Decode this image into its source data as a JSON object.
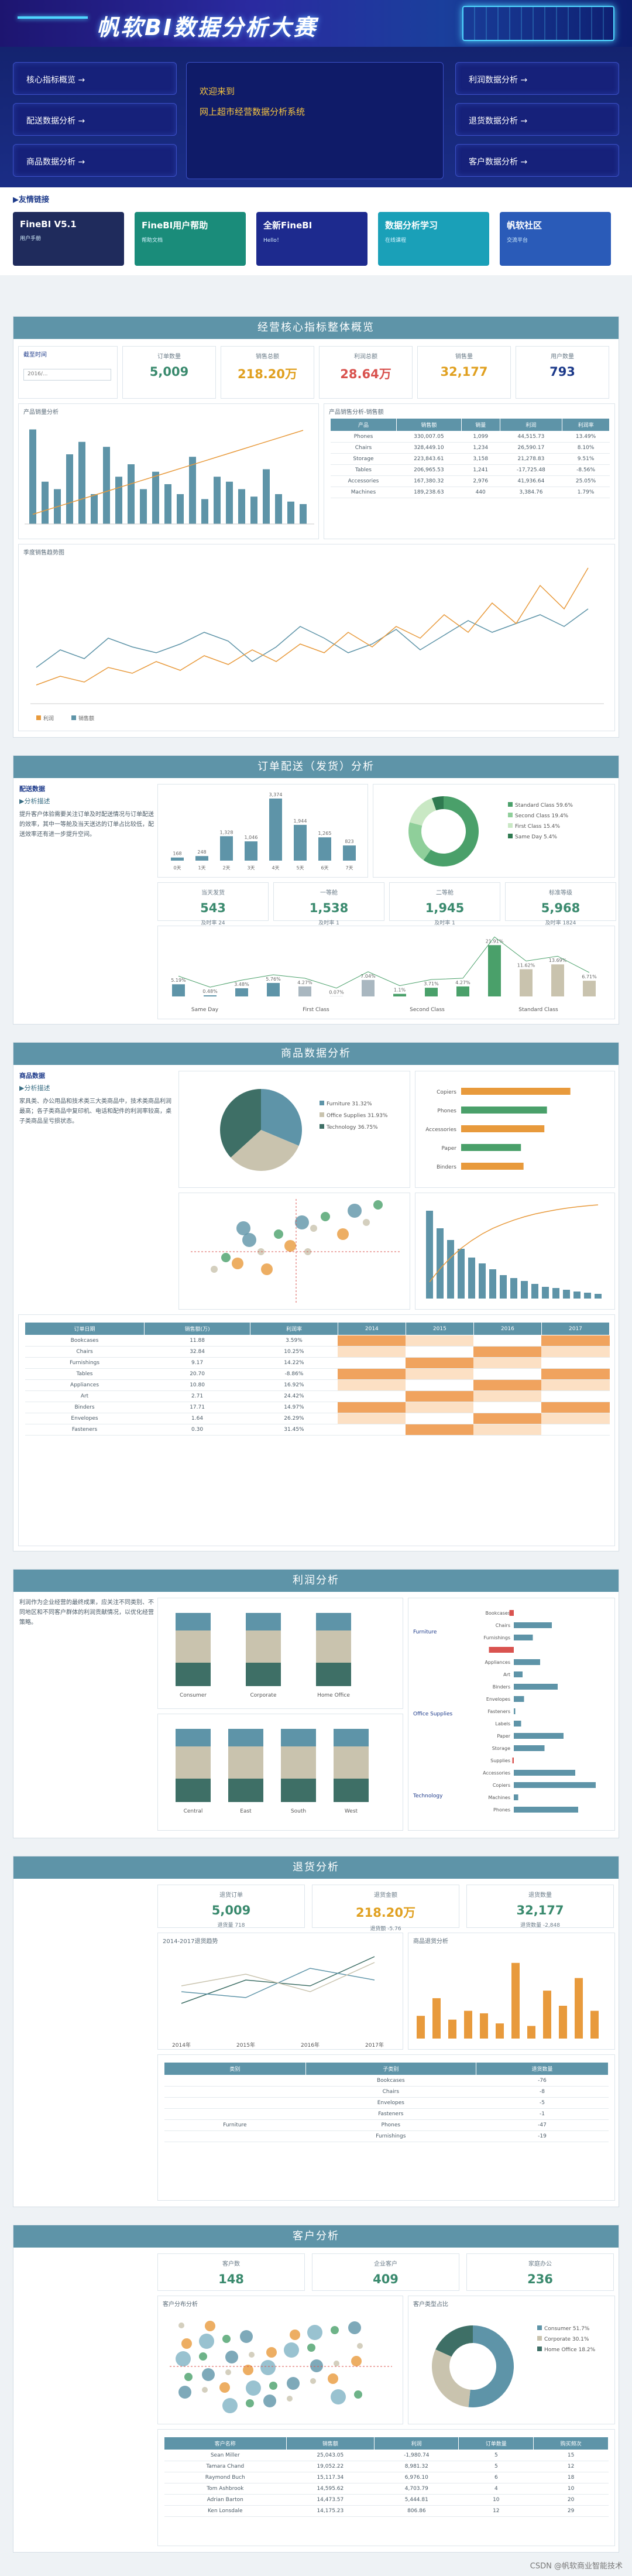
{
  "banner": {
    "title": "帆软BI数据分析大赛"
  },
  "nav": {
    "left": [
      "核心指标概览 →",
      "配送数据分析 →",
      "商品数据分析 →"
    ],
    "right": [
      "利润数据分析 →",
      "退货数据分析 →",
      "客户数据分析 →"
    ]
  },
  "welcome": {
    "line1": "欢迎来到",
    "line2": "网上超市经营数据分析系统"
  },
  "friend": {
    "title": "▶友情链接",
    "cards": [
      {
        "t": "FineBI V5.1",
        "s": "用户手册",
        "bg": "#1f2b5c"
      },
      {
        "t": "FineBI用户帮助",
        "s": "帮助文档",
        "bg": "#1a8c7a"
      },
      {
        "t": "全新FineBI",
        "s": "Hello！",
        "bg": "#1d2a8e"
      },
      {
        "t": "数据分析学习",
        "s": "在线课程",
        "bg": "#1aa0b8"
      },
      {
        "t": "帆软社区",
        "s": "交流平台",
        "bg": "#2a5bb8"
      }
    ]
  },
  "s1": {
    "title": "经营核心指标整体概览",
    "filter_label": "截至时间",
    "filter_value": "2016/...",
    "kpis": [
      {
        "l": "订单数量",
        "v": "5,009",
        "c": "#3a8a6e"
      },
      {
        "l": "销售总额",
        "v": "218.20",
        "u": "万",
        "c": "#e0a020"
      },
      {
        "l": "利润总额",
        "v": "28.64",
        "u": "万",
        "c": "#d9534f"
      },
      {
        "l": "销售量",
        "v": "32,177",
        "c": "#e0a020"
      },
      {
        "l": "用户数量",
        "v": "793",
        "c": "#1d3a8a"
      }
    ],
    "chart1_title": "产品销量分析",
    "chart2_title": "产品销售分析-销售额",
    "chart3_title": "季度销售趋势图",
    "table_head": [
      "产品",
      "销售额",
      "销量",
      "利润",
      "利润率"
    ],
    "table": [
      [
        "Phones",
        "330,007.05",
        "1,099",
        "44,515.73",
        "13.49%"
      ],
      [
        "Chairs",
        "328,449.10",
        "1,234",
        "26,590.17",
        "8.10%"
      ],
      [
        "Storage",
        "223,843.61",
        "3,158",
        "21,278.83",
        "9.51%"
      ],
      [
        "Tables",
        "206,965.53",
        "1,241",
        "-17,725.48",
        "-8.56%"
      ],
      [
        "Accessories",
        "167,380.32",
        "2,976",
        "41,936.64",
        "25.05%"
      ],
      [
        "Machines",
        "189,238.63",
        "440",
        "3,384.76",
        "1.79%"
      ]
    ],
    "legend": [
      "利润",
      "销售额"
    ]
  },
  "s2": {
    "title": "订单配送（发货）分析",
    "note_h": "配送数据",
    "note_s": "▶分析描述",
    "note": "提升客户体验需要关注订单及时配送情况与订单配送的效率，其中一等舱及当天送达的订单占比较低，配送效率还有进一步提升空间。",
    "kpis": [
      {
        "l": "当天发货",
        "v": "543",
        "s": "及时率 24"
      },
      {
        "l": "一等舱",
        "v": "1,538",
        "s": "及时率 1"
      },
      {
        "l": "二等舱",
        "v": "1,945",
        "s": "及时率 1"
      },
      {
        "l": "标准等级",
        "v": "5,968",
        "s": "及时率 1824"
      }
    ],
    "bars": [
      {
        "c": "0天",
        "v": 168
      },
      {
        "c": "1天",
        "v": 248
      },
      {
        "c": "2天",
        "v": 1328
      },
      {
        "c": "3天",
        "v": 1046
      },
      {
        "c": "4天",
        "v": 3374
      },
      {
        "c": "5天",
        "v": 1944
      },
      {
        "c": "6天",
        "v": 1265
      },
      {
        "c": "7天",
        "v": 823
      }
    ],
    "donut": [
      {
        "n": "Standard Class",
        "v": 59.6,
        "c": "#4aa06a"
      },
      {
        "n": "Second Class",
        "v": 19.4,
        "c": "#8fcf9a"
      },
      {
        "n": "First Class",
        "v": 15.4,
        "c": "#c9e8c4"
      },
      {
        "n": "Same Day",
        "v": 5.4,
        "c": "#2f7a50"
      }
    ],
    "bars2": [
      5.19,
      0.48,
      3.48,
      5.76,
      4.27,
      0.07,
      7.04,
      1.1,
      3.71,
      4.27,
      21.91,
      11.62,
      13.69,
      6.71
    ],
    "groups": [
      "Same Day",
      "First Class",
      "Second Class",
      "Standard Class"
    ]
  },
  "s3": {
    "title": "商品数据分析",
    "note_h": "商品数据",
    "note_s": "▶分析描述",
    "note": "家具类、办公用品和技术类三大类商品中，技术类商品利润最高；各子类商品中复印机、电话和配件的利润率较高，桌子类商品呈亏损状态。",
    "pie": [
      {
        "n": "Furniture",
        "v": 31.32,
        "c": "#5e94a8"
      },
      {
        "n": "Office Supplies",
        "v": 31.93,
        "c": "#c9c3ae"
      },
      {
        "n": "Technology",
        "v": 36.75,
        "c": "#3e6f66"
      }
    ],
    "hbars": [
      {
        "n": "Copiers",
        "v": 42
      },
      {
        "n": "Phones",
        "v": 33
      },
      {
        "n": "Accessories",
        "v": 32
      },
      {
        "n": "Paper",
        "v": 23
      },
      {
        "n": "Binders",
        "v": 24
      }
    ],
    "table_head": [
      "订单日期",
      "销售额(万)",
      "利润率",
      "2014",
      "2015",
      "2016",
      "2017"
    ],
    "rows": [
      [
        "Bookcases",
        "11.88",
        "3.59%"
      ],
      [
        "Chairs",
        "32.84",
        "10.25%"
      ],
      [
        "Furnishings",
        "9.17",
        "14.22%"
      ],
      [
        "Tables",
        "20.70",
        "-8.86%"
      ],
      [
        "Appliances",
        "10.80",
        "16.92%"
      ],
      [
        "Art",
        "2.71",
        "24.42%"
      ],
      [
        "Binders",
        "17.71",
        "14.97%"
      ],
      [
        "Envelopes",
        "1.64",
        "26.29%"
      ],
      [
        "Fasteners",
        "0.30",
        "31.45%"
      ]
    ]
  },
  "s4": {
    "title": "利润分析",
    "note": "利润作为企业经营的最终成果，应关注不同类别、不同地区和不同客户群体的利润贡献情况，以优化经营策略。",
    "cats": [
      "Consumer",
      "Corporate",
      "Home Office"
    ],
    "regions": [
      "Central",
      "East",
      "South",
      "West"
    ],
    "hbars": [
      {
        "n": "Bookcases",
        "v": -3
      },
      {
        "n": "Chairs",
        "v": 26
      },
      {
        "n": "Furnishings",
        "v": 13
      },
      {
        "n": "Tables",
        "v": -17
      },
      {
        "n": "Appliances",
        "v": 18
      },
      {
        "n": "Art",
        "v": 6
      },
      {
        "n": "Binders",
        "v": 30
      },
      {
        "n": "Envelopes",
        "v": 7
      },
      {
        "n": "Fasteners",
        "v": 1
      },
      {
        "n": "Labels",
        "v": 5
      },
      {
        "n": "Paper",
        "v": 34
      },
      {
        "n": "Storage",
        "v": 21
      },
      {
        "n": "Supplies",
        "v": -1
      },
      {
        "n": "Accessories",
        "v": 42
      },
      {
        "n": "Copiers",
        "v": 56
      },
      {
        "n": "Machines",
        "v": 3
      },
      {
        "n": "Phones",
        "v": 44
      }
    ],
    "groups": [
      "Furniture",
      "Office Supplies",
      "Technology"
    ]
  },
  "s5": {
    "title": "退货分析",
    "kpis": [
      {
        "l": "退货订单",
        "v": "5,009",
        "s": "退货量 718",
        "c": "#3a8a6e"
      },
      {
        "l": "退货金额",
        "v": "218.20",
        "u": "万",
        "s": "退货额 -5.76",
        "c": "#e0a020"
      },
      {
        "l": "退货数量",
        "v": "32,177",
        "s": "退货数量 -2,848",
        "c": "#3a8a6e"
      }
    ],
    "line_title": "2014-2017退货趋势",
    "bar_title": "商品退货分析",
    "years": [
      "2014年",
      "2015年",
      "2016年",
      "2017年"
    ],
    "bars": [
      {
        "n": "Bookcases",
        "v": 18
      },
      {
        "n": "Chairs",
        "v": 32
      },
      {
        "n": "Furnishings",
        "v": 15
      },
      {
        "n": "Tables",
        "v": 22
      },
      {
        "n": "Appliances",
        "v": 20
      },
      {
        "n": "Art",
        "v": 12
      },
      {
        "n": "Binders",
        "v": 60
      },
      {
        "n": "Envelopes",
        "v": 10
      },
      {
        "n": "Paper",
        "v": 38
      },
      {
        "n": "Accessories",
        "v": 26
      },
      {
        "n": "Machines",
        "v": 48
      },
      {
        "n": "Phones",
        "v": 22
      }
    ],
    "table_head": [
      "类别",
      "子类别",
      "退货数量"
    ],
    "rows": [
      [
        "",
        "Bookcases",
        "-76"
      ],
      [
        "",
        "Chairs",
        "-8"
      ],
      [
        "",
        "Envelopes",
        "-5"
      ],
      [
        "",
        "Fasteners",
        "-1"
      ],
      [
        "Furniture",
        "Phones",
        "-47"
      ],
      [
        "",
        "Furnishings",
        "-19"
      ]
    ]
  },
  "s6": {
    "title": "客户分析",
    "kpis": [
      {
        "l": "客户数",
        "v": "148"
      },
      {
        "l": "企业客户",
        "v": "409"
      },
      {
        "l": "家庭办公",
        "v": "236"
      }
    ],
    "scatter_title": "客户分布分析",
    "donut_title": "客户类型占比",
    "donut": [
      {
        "n": "Consumer",
        "v": 51.7,
        "c": "#5e94a8"
      },
      {
        "n": "Corporate",
        "v": 30.1,
        "c": "#c9c3ae"
      },
      {
        "n": "Home Office",
        "v": 18.2,
        "c": "#3e6f66"
      }
    ],
    "table_head": [
      "客户名称",
      "销售额",
      "利润",
      "订单数量",
      "购买频次"
    ],
    "rows": [
      [
        "Sean Miller",
        "25,043.05",
        "-1,980.74",
        "5",
        "15"
      ],
      [
        "Tamara Chand",
        "19,052.22",
        "8,981.32",
        "5",
        "12"
      ],
      [
        "Raymond Buch",
        "15,117.34",
        "6,976.10",
        "6",
        "18"
      ],
      [
        "Tom Ashbrook",
        "14,595.62",
        "4,703.79",
        "4",
        "10"
      ],
      [
        "Adrian Barton",
        "14,473.57",
        "5,444.81",
        "10",
        "20"
      ],
      [
        "Ken Lonsdale",
        "14,175.23",
        "806.86",
        "12",
        "29"
      ]
    ]
  },
  "footer": "CSDN @帆软商业智能技术"
}
